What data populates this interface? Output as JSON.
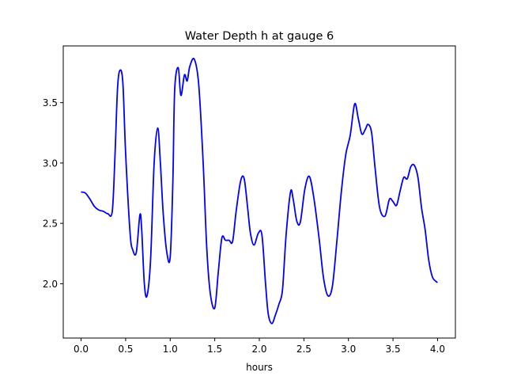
{
  "chart_data": {
    "type": "line",
    "title": "Water Depth h at gauge 6",
    "xlabel": "hours",
    "ylabel": "",
    "xlim": [
      -0.2,
      4.2
    ],
    "ylim": [
      1.55,
      3.97
    ],
    "xticks": [
      0.0,
      0.5,
      1.0,
      1.5,
      2.0,
      2.5,
      3.0,
      3.5,
      4.0
    ],
    "xtick_labels": [
      "0.0",
      "0.5",
      "1.0",
      "1.5",
      "2.0",
      "2.5",
      "3.0",
      "3.5",
      "4.0"
    ],
    "yticks": [
      2.0,
      2.5,
      3.0,
      3.5
    ],
    "ytick_labels": [
      "2.0",
      "2.5",
      "3.0",
      "3.5"
    ],
    "grid": false,
    "series": [
      {
        "color": "#0000ff",
        "x": [
          0.0,
          0.05,
          0.1,
          0.15,
          0.2,
          0.25,
          0.3,
          0.35,
          0.38,
          0.41,
          0.44,
          0.47,
          0.5,
          0.55,
          0.58,
          0.62,
          0.66,
          0.68,
          0.71,
          0.74,
          0.78,
          0.82,
          0.86,
          0.89,
          0.92,
          0.96,
          1.0,
          1.03,
          1.05,
          1.09,
          1.12,
          1.16,
          1.19,
          1.22,
          1.27,
          1.32,
          1.37,
          1.41,
          1.45,
          1.5,
          1.54,
          1.58,
          1.62,
          1.66,
          1.7,
          1.74,
          1.79,
          1.83,
          1.87,
          1.9,
          1.94,
          1.99,
          2.03,
          2.07,
          2.1,
          2.14,
          2.18,
          2.22,
          2.26,
          2.3,
          2.35,
          2.38,
          2.42,
          2.46,
          2.51,
          2.56,
          2.61,
          2.67,
          2.72,
          2.77,
          2.82,
          2.87,
          2.92,
          2.97,
          3.02,
          3.07,
          3.11,
          3.15,
          3.19,
          3.22,
          3.26,
          3.3,
          3.35,
          3.41,
          3.46,
          3.5,
          3.54,
          3.58,
          3.62,
          3.66,
          3.7,
          3.74,
          3.78,
          3.82,
          3.86,
          3.9,
          3.94,
          3.98,
          4.0
        ],
        "y": [
          2.76,
          2.75,
          2.7,
          2.64,
          2.61,
          2.6,
          2.58,
          2.6,
          3.05,
          3.63,
          3.77,
          3.65,
          3.08,
          2.42,
          2.28,
          2.26,
          2.57,
          2.45,
          2.0,
          1.9,
          2.2,
          3.0,
          3.29,
          3.0,
          2.6,
          2.27,
          2.22,
          2.85,
          3.6,
          3.79,
          3.56,
          3.73,
          3.68,
          3.8,
          3.86,
          3.65,
          3.0,
          2.3,
          1.92,
          1.8,
          2.1,
          2.38,
          2.36,
          2.36,
          2.35,
          2.6,
          2.85,
          2.87,
          2.62,
          2.42,
          2.32,
          2.42,
          2.4,
          2.0,
          1.75,
          1.67,
          1.74,
          1.83,
          1.95,
          2.4,
          2.76,
          2.7,
          2.52,
          2.51,
          2.78,
          2.89,
          2.72,
          2.38,
          2.05,
          1.9,
          1.98,
          2.35,
          2.76,
          3.07,
          3.23,
          3.49,
          3.37,
          3.24,
          3.28,
          3.32,
          3.25,
          2.95,
          2.63,
          2.56,
          2.7,
          2.68,
          2.65,
          2.77,
          2.88,
          2.87,
          2.97,
          2.98,
          2.88,
          2.63,
          2.45,
          2.2,
          2.06,
          2.02,
          2.01
        ]
      }
    ]
  }
}
